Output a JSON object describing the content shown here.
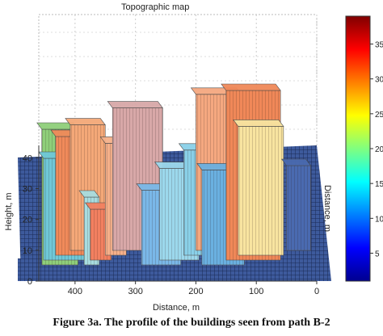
{
  "chart_data": {
    "type": "3d-surface",
    "title": "Topographic map",
    "xlabel": "Distance, m",
    "ylabel": "Height, m",
    "zlabel": "Distance, m",
    "x_ticks": [
      "400",
      "300",
      "200",
      "100",
      "0"
    ],
    "x_tick_values": [
      400,
      300,
      200,
      100,
      0
    ],
    "xlim": [
      460,
      0
    ],
    "y_ticks": [
      "0",
      "10",
      "20",
      "30",
      "40"
    ],
    "y_tick_values": [
      0,
      10,
      20,
      30,
      40
    ],
    "ylim": [
      0,
      44
    ],
    "colorbar": {
      "ticks": [
        "5",
        "10",
        "15",
        "20",
        "25",
        "30",
        "35"
      ],
      "tick_values": [
        5,
        10,
        15,
        20,
        25,
        30,
        35
      ],
      "range": [
        1,
        39
      ]
    },
    "buildings": [
      {
        "x0": 395,
        "x1": 455,
        "z0": 0,
        "h": 40,
        "color": "#8fcf7a"
      },
      {
        "x0": 380,
        "x1": 452,
        "z0": 0,
        "h": 30,
        "color": "#6fc8d8"
      },
      {
        "x0": 360,
        "x1": 432,
        "z0": 0,
        "h": 35,
        "color": "#f08a5a"
      },
      {
        "x0": 350,
        "x1": 408,
        "z0": 0,
        "h": 37,
        "color": "#f4a878"
      },
      {
        "x0": 360,
        "x1": 385,
        "z0": 0,
        "h": 20,
        "color": "#a8dde0"
      },
      {
        "x0": 340,
        "x1": 375,
        "z0": 0,
        "h": 15,
        "color": "#f28060"
      },
      {
        "x0": 315,
        "x1": 350,
        "z0": 0,
        "h": 33,
        "color": "#f5b08a"
      },
      {
        "x0": 255,
        "x1": 338,
        "z0": 0,
        "h": 42,
        "color": "#d8a8a8"
      },
      {
        "x0": 225,
        "x1": 290,
        "z0": 0,
        "h": 22,
        "color": "#7ab8e8"
      },
      {
        "x0": 195,
        "x1": 260,
        "z0": 0,
        "h": 27,
        "color": "#9cd8ec"
      },
      {
        "x0": 165,
        "x1": 220,
        "z0": 0,
        "h": 31,
        "color": "#8ad0e8"
      },
      {
        "x0": 125,
        "x1": 200,
        "z0": 0,
        "h": 46,
        "color": "#f5a880"
      },
      {
        "x0": 120,
        "x1": 190,
        "z0": 0,
        "h": 28,
        "color": "#6ab0e0"
      },
      {
        "x0": 60,
        "x1": 150,
        "z0": 0,
        "h": 50,
        "color": "#f08858"
      },
      {
        "x0": 55,
        "x1": 130,
        "z0": 0,
        "h": 38,
        "color": "#f8e4a0"
      },
      {
        "x0": 10,
        "x1": 50,
        "z0": 0,
        "h": 25,
        "color": "#4a6ab0"
      }
    ]
  },
  "caption": "Figure 3a. The profile of the buildings seen from path B-2"
}
